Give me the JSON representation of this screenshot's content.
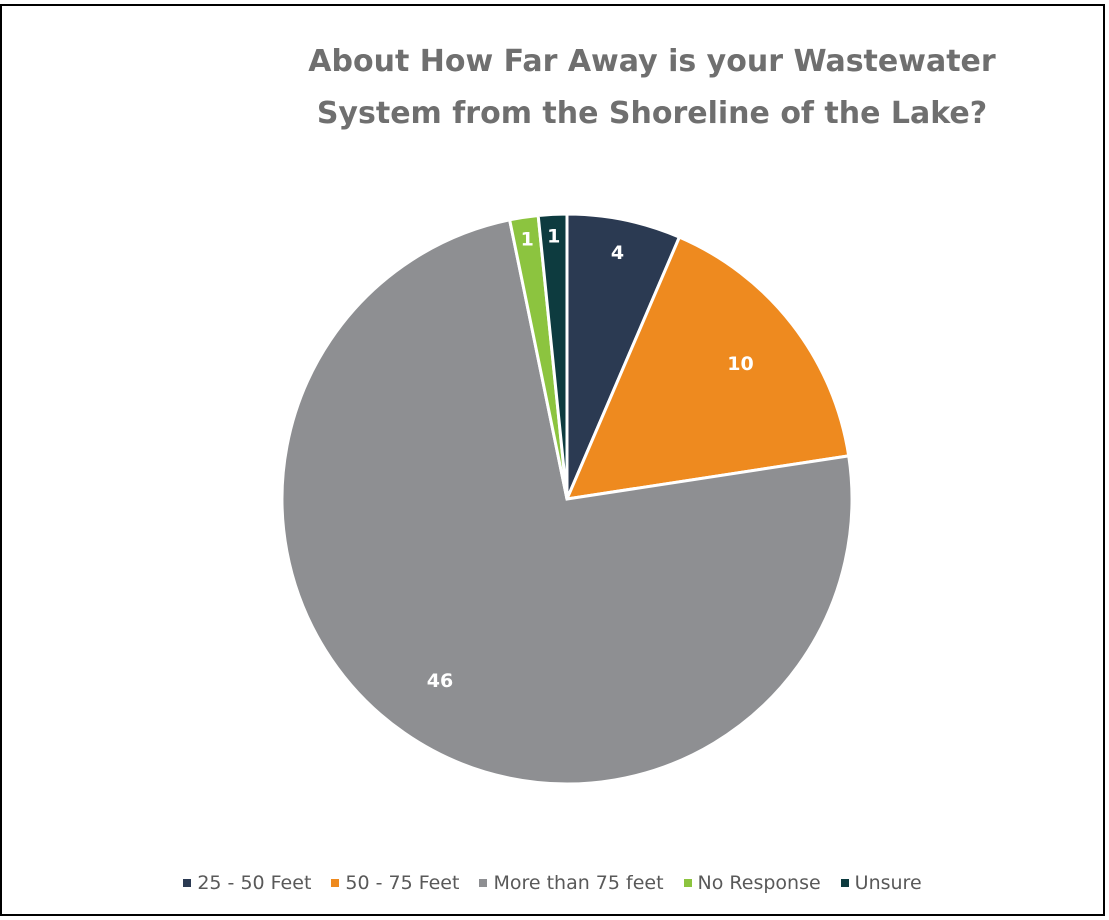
{
  "chart_data": {
    "type": "pie",
    "title_lines": [
      "About How Far Away is your Wastewater",
      "System from the Shoreline of the Lake?"
    ],
    "categories": [
      "25 - 50 Feet",
      "50 - 75 Feet",
      "More than 75 feet",
      "No Response",
      "Unsure"
    ],
    "values": [
      4,
      10,
      46,
      1,
      1
    ],
    "colors": [
      "#2b3a52",
      "#ee8a1f",
      "#8e8f92",
      "#8cc43f",
      "#0d3b3f"
    ],
    "start_angle": "12 o'clock",
    "direction": "clockwise",
    "data_labels": true,
    "legend_position": "bottom"
  }
}
